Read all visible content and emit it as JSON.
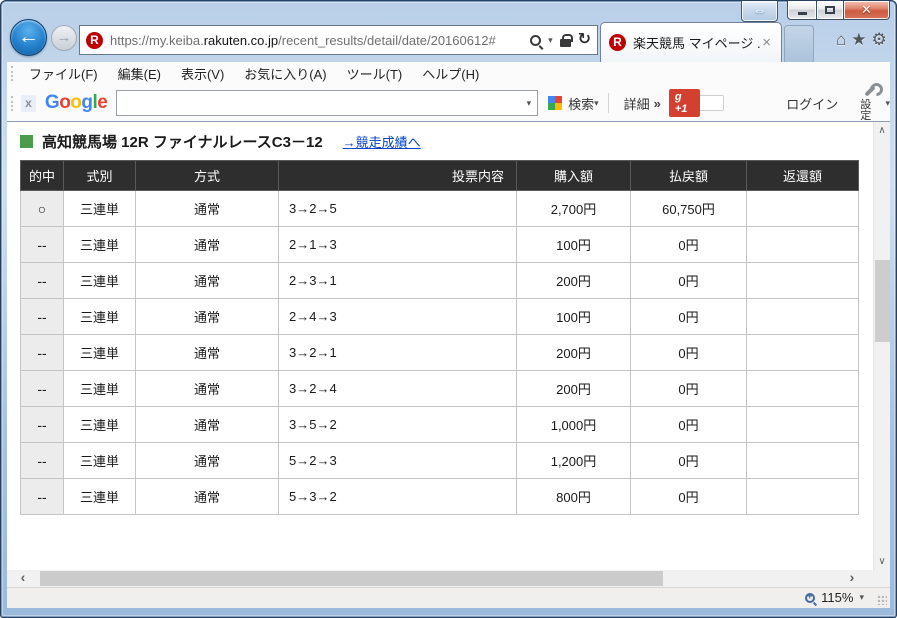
{
  "window": {
    "tab_title": "楽天競馬 マイページ ..."
  },
  "chrome": {
    "url": {
      "prefix": "https://my.keiba.",
      "domain": "rakuten.co.jp",
      "path": "/recent_results/detail/date/20160612#"
    },
    "favicon_letter": "R",
    "menu_items": [
      "ファイル(F)",
      "編集(E)",
      "表示(V)",
      "お気に入り(A)",
      "ツール(T)",
      "ヘルプ(H)"
    ]
  },
  "google_toolbar": {
    "close_label": "x",
    "logo_letters": [
      "G",
      "o",
      "o",
      "g",
      "l",
      "e"
    ],
    "search_button": "検索",
    "details_button": "詳細",
    "plus_one_label": "g +1",
    "login_button": "ログイン",
    "settings_label": "設定"
  },
  "page": {
    "heading": "高知競馬場 12R ファイナルレースC3－12",
    "results_link": "→競走成績へ"
  },
  "table": {
    "headers": [
      "的中",
      "式別",
      "方式",
      "投票内容",
      "購入額",
      "払戻額",
      "返還額"
    ],
    "rows": [
      {
        "hit": "○",
        "type": "三連単",
        "method": "通常",
        "content": "3→2→5",
        "purchase": "2,700円",
        "payout": "60,750円",
        "refund": ""
      },
      {
        "hit": "--",
        "type": "三連単",
        "method": "通常",
        "content": "2→1→3",
        "purchase": "100円",
        "payout": "0円",
        "refund": ""
      },
      {
        "hit": "--",
        "type": "三連単",
        "method": "通常",
        "content": "2→3→1",
        "purchase": "200円",
        "payout": "0円",
        "refund": ""
      },
      {
        "hit": "--",
        "type": "三連単",
        "method": "通常",
        "content": "2→4→3",
        "purchase": "100円",
        "payout": "0円",
        "refund": ""
      },
      {
        "hit": "--",
        "type": "三連単",
        "method": "通常",
        "content": "3→2→1",
        "purchase": "200円",
        "payout": "0円",
        "refund": ""
      },
      {
        "hit": "--",
        "type": "三連単",
        "method": "通常",
        "content": "3→2→4",
        "purchase": "200円",
        "payout": "0円",
        "refund": ""
      },
      {
        "hit": "--",
        "type": "三連単",
        "method": "通常",
        "content": "3→5→2",
        "purchase": "1,000円",
        "payout": "0円",
        "refund": ""
      },
      {
        "hit": "--",
        "type": "三連単",
        "method": "通常",
        "content": "5→2→3",
        "purchase": "1,200円",
        "payout": "0円",
        "refund": ""
      },
      {
        "hit": "--",
        "type": "三連単",
        "method": "通常",
        "content": "5→3→2",
        "purchase": "800円",
        "payout": "0円",
        "refund": ""
      }
    ]
  },
  "status_bar": {
    "zoom_level": "115%"
  },
  "icons": {
    "back_arrow": "←",
    "forward_arrow": "→",
    "refresh": "↻",
    "dropdown_caret": "▾",
    "details_chevrons": "»",
    "home": "⌂",
    "star": "★",
    "gear": "⚙",
    "close_x": "✕",
    "tab_close": "×",
    "compat_double_arrow": "⇔",
    "scroll_up": "∧",
    "scroll_down": "∨",
    "scroll_left": "‹",
    "scroll_right": "›"
  },
  "colors": {
    "rakuten_red": "#bf0000",
    "link_blue": "#0044cc",
    "heading_green": "#4d9c4d",
    "table_header_bg": "#2e2e2e",
    "hit_column_bg": "#ececec",
    "plus_one_red": "#d3402f",
    "google_blue": "#4285F4",
    "google_red": "#EA4335",
    "google_yellow": "#FBBC05",
    "google_green": "#34A853",
    "aero_glass_blue": "#a6c2e0"
  }
}
